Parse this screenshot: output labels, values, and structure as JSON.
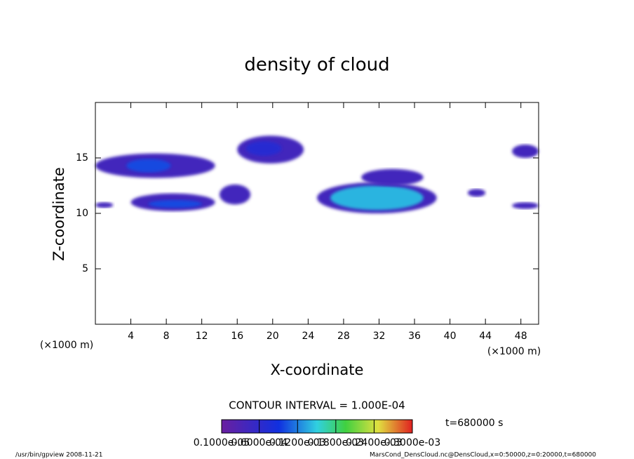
{
  "chart_data": {
    "type": "contour",
    "title": "density of cloud",
    "xlabel": "X-coordinate",
    "ylabel": "Z-coordinate",
    "xunit_left": "(×1000 m)",
    "xunit_right": "(×1000 m)",
    "xlim": [
      0,
      50
    ],
    "ylim": [
      0,
      20
    ],
    "xticks": [
      4,
      8,
      12,
      16,
      20,
      24,
      28,
      32,
      36,
      40,
      44,
      48
    ],
    "yticks": [
      5,
      10,
      15
    ],
    "contour_interval": "CONTOUR INTERVAL = 1.000E-04",
    "time": "t=680000 s",
    "colorbar": {
      "clim": [
        1e-06,
        0.0003
      ],
      "ticks": [
        {
          "value": 1e-06,
          "label": "0.1000e-05"
        },
        {
          "value": 6e-05,
          "label": "0.6000e-04"
        },
        {
          "value": 0.00012,
          "label": "0.1200e-03"
        },
        {
          "value": 0.00018,
          "label": "0.1800e-03"
        },
        {
          "value": 0.00024,
          "label": "0.2400e-03"
        },
        {
          "value": 0.0003,
          "label": "0.3000e-03"
        }
      ]
    },
    "regions": [
      {
        "x": [
          0,
          13.5
        ],
        "y": [
          13.2,
          15.4
        ],
        "value": 4e-05
      },
      {
        "x": [
          3.5,
          8.5
        ],
        "y": [
          13.7,
          14.9
        ],
        "value": 0.0001
      },
      {
        "x": [
          4,
          13.5
        ],
        "y": [
          10.2,
          11.8
        ],
        "value": 4e-05
      },
      {
        "x": [
          6,
          12
        ],
        "y": [
          10.5,
          11.2
        ],
        "value": 0.0001
      },
      {
        "x": [
          16,
          23.5
        ],
        "y": [
          14.5,
          17
        ],
        "value": 4e-05
      },
      {
        "x": [
          17,
          21
        ],
        "y": [
          15.2,
          16.5
        ],
        "value": 7e-05
      },
      {
        "x": [
          25,
          38.5
        ],
        "y": [
          10,
          12.8
        ],
        "value": 4e-05
      },
      {
        "x": [
          26.5,
          37
        ],
        "y": [
          10.3,
          12.5
        ],
        "value": 0.00014
      },
      {
        "x": [
          30,
          37
        ],
        "y": [
          12.5,
          14
        ],
        "value": 4e-05
      },
      {
        "x": [
          47,
          50
        ],
        "y": [
          15,
          16.2
        ],
        "value": 4e-05
      },
      {
        "x": [
          47,
          50
        ],
        "y": [
          10.4,
          11
        ],
        "value": 4e-05
      },
      {
        "x": [
          42,
          44
        ],
        "y": [
          11.5,
          12.2
        ],
        "value": 4e-05
      },
      {
        "x": [
          14,
          17.5
        ],
        "y": [
          10.8,
          12.6
        ],
        "value": 4e-05
      },
      {
        "x": [
          0,
          2
        ],
        "y": [
          10.5,
          11
        ],
        "value": 4e-05
      }
    ]
  },
  "footer": {
    "left": "/usr/bin/gpview  2008-11-21",
    "right": "MarsCond_DensCloud.nc@DensCloud,x=0:50000,z=0:20000,t=680000"
  }
}
